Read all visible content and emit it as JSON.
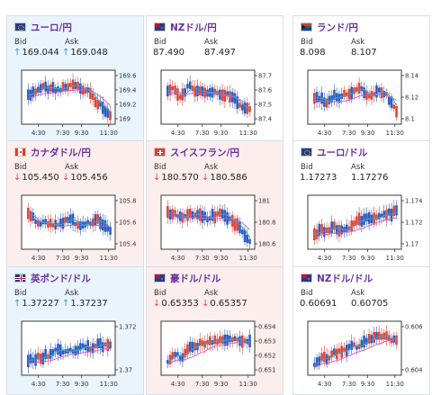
{
  "labels": {
    "bid": "Bid",
    "ask": "Ask"
  },
  "colors": {
    "up_card": "#eaf4fc",
    "down_card": "#fdeeee",
    "flat_card": "#ffffff",
    "pair_text": "#6a2fa0",
    "arrow_up": "#2a9ad6",
    "arrow_down": "#e0463a",
    "candle_up": "#2f5dbf",
    "candle_down": "#e0463a",
    "ma_short": "#36b0c9",
    "ma_long": "#d05ad0"
  },
  "x_ticks": [
    "4:30",
    "7:30",
    "9:30",
    "11:30"
  ],
  "cards": [
    {
      "pair": "ユーロ/円",
      "flag": "eu-flag-icon",
      "trend": "up",
      "bid": "169.044",
      "ask": "169.048",
      "y_ticks": [
        "169.6",
        "169.4",
        "169.2",
        "169"
      ]
    },
    {
      "pair": "NZドル/円",
      "flag": "nz-flag-icon",
      "trend": "flat",
      "bid": "87.490",
      "ask": "87.497",
      "y_ticks": [
        "87.7",
        "87.6",
        "87.5",
        "87.4"
      ]
    },
    {
      "pair": "ランド/円",
      "flag": "za-flag-icon",
      "trend": "flat",
      "bid": "8.098",
      "ask": "8.107",
      "y_ticks": [
        "8.14",
        "8.12",
        "8.1"
      ]
    },
    {
      "pair": "カナダドル/円",
      "flag": "ca-flag-icon",
      "trend": "down",
      "bid": "105.450",
      "ask": "105.456",
      "y_ticks": [
        "105.8",
        "105.6",
        "105.4"
      ]
    },
    {
      "pair": "スイスフラン/円",
      "flag": "ch-flag-icon",
      "trend": "down",
      "bid": "180.570",
      "ask": "180.586",
      "y_ticks": [
        "181",
        "180.8",
        "180.6"
      ]
    },
    {
      "pair": "ユーロ/ドル",
      "flag": "eu-flag-icon",
      "trend": "flat",
      "bid": "1.17273",
      "ask": "1.17276",
      "y_ticks": [
        "1.174",
        "1.172",
        "1.17"
      ]
    },
    {
      "pair": "英ポンド/ドル",
      "flag": "gb-flag-icon",
      "trend": "up",
      "bid": "1.37227",
      "ask": "1.37237",
      "y_ticks": [
        "1.372",
        "1.37"
      ]
    },
    {
      "pair": "豪ドル/ドル",
      "flag": "au-flag-icon",
      "trend": "down",
      "bid": "0.65353",
      "ask": "0.65357",
      "y_ticks": [
        "0.654",
        "0.653",
        "0.652",
        "0.651"
      ]
    },
    {
      "pair": "NZドル/ドル",
      "flag": "nz-flag-icon",
      "trend": "flat",
      "bid": "0.60691",
      "ask": "0.60705",
      "y_ticks": [
        "0.606",
        "0.604"
      ]
    }
  ]
}
